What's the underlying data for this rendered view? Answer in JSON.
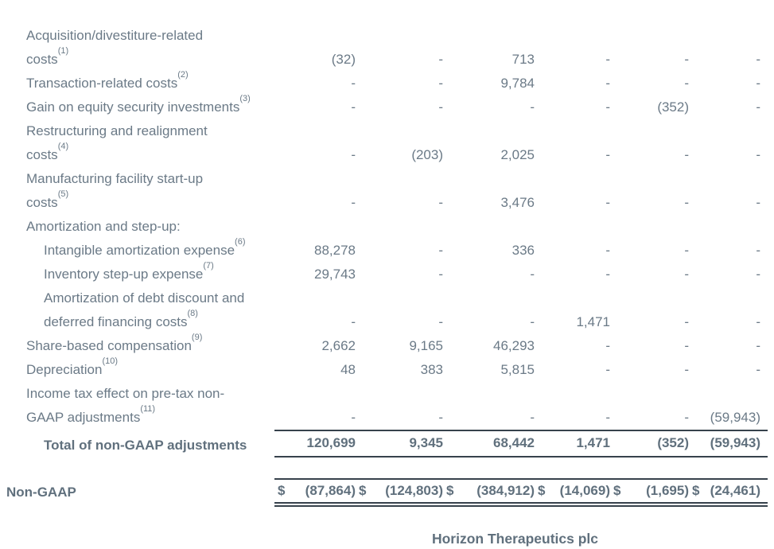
{
  "colors": {
    "text": "#6b7a87",
    "bold_text": "#60707d",
    "rule": "#37424c",
    "background": "#ffffff"
  },
  "table": {
    "rows": [
      {
        "lines": [
          "Acquisition/divestiture-related",
          "costs"
        ],
        "sup": "(1)",
        "indent": 0,
        "bold": false,
        "total": false,
        "values": [
          "(32)",
          "-",
          "713",
          "-",
          "-",
          "-"
        ]
      },
      {
        "lines": [
          "Transaction-related costs"
        ],
        "sup": "(2)",
        "indent": 0,
        "bold": false,
        "total": false,
        "values": [
          "-",
          "-",
          "9,784",
          "-",
          "-",
          "-"
        ]
      },
      {
        "lines": [
          "Gain on equity security investments"
        ],
        "sup": "(3)",
        "indent": 0,
        "bold": false,
        "total": false,
        "values": [
          "-",
          "-",
          "-",
          "-",
          "(352)",
          "-"
        ]
      },
      {
        "lines": [
          "Restructuring and realignment",
          "costs"
        ],
        "sup": "(4)",
        "indent": 0,
        "bold": false,
        "total": false,
        "values": [
          "-",
          "(203)",
          "2,025",
          "-",
          "-",
          "-"
        ]
      },
      {
        "lines": [
          "Manufacturing facility start-up",
          "costs"
        ],
        "sup": "(5)",
        "indent": 0,
        "bold": false,
        "total": false,
        "values": [
          "-",
          "-",
          "3,476",
          "-",
          "-",
          "-"
        ]
      },
      {
        "lines": [
          "Amortization and step-up:"
        ],
        "sup": "",
        "indent": 0,
        "bold": false,
        "total": false,
        "values": [
          "",
          "",
          "",
          "",
          "",
          ""
        ]
      },
      {
        "lines": [
          "Intangible amortization expense"
        ],
        "sup": "(6)",
        "indent": 1,
        "bold": false,
        "total": false,
        "values": [
          "88,278",
          "-",
          "336",
          "-",
          "-",
          "-"
        ]
      },
      {
        "lines": [
          "Inventory step-up expense"
        ],
        "sup": "(7)",
        "indent": 1,
        "bold": false,
        "total": false,
        "values": [
          "29,743",
          "-",
          "-",
          "-",
          "-",
          "-"
        ]
      },
      {
        "lines": [
          "Amortization of debt discount and",
          "deferred financing costs"
        ],
        "sup": "(8)",
        "indent": 1,
        "bold": false,
        "total": false,
        "values": [
          "-",
          "-",
          "-",
          "1,471",
          "-",
          "-"
        ]
      },
      {
        "lines": [
          "Share-based compensation"
        ],
        "sup": "(9)",
        "indent": 0,
        "bold": false,
        "total": false,
        "values": [
          "2,662",
          "9,165",
          "46,293",
          "-",
          "-",
          "-"
        ]
      },
      {
        "lines": [
          "Depreciation"
        ],
        "sup": "(10)",
        "indent": 0,
        "bold": false,
        "total": false,
        "values": [
          "48",
          "383",
          "5,815",
          "-",
          "-",
          "-"
        ]
      },
      {
        "lines": [
          "Income tax effect on pre-tax non-",
          "GAAP adjustments"
        ],
        "sup": "(11)",
        "indent": 0,
        "bold": false,
        "total": false,
        "values": [
          "-",
          "-",
          "-",
          "-",
          "-",
          "(59,943)"
        ]
      },
      {
        "lines": [
          "Total of non-GAAP adjustments"
        ],
        "sup": "",
        "indent": 1,
        "bold": true,
        "total": true,
        "values": [
          "120,699",
          "9,345",
          "68,442",
          "1,471",
          "(352)",
          "(59,943)"
        ]
      }
    ],
    "nongaap": {
      "label": "Non-GAAP",
      "currency": "$",
      "values": [
        "(87,864)",
        "(124,803)",
        "(384,912)",
        "(14,069)",
        "(1,695)",
        "(24,461)"
      ]
    }
  },
  "footer": {
    "company": "Horizon Therapeutics plc"
  }
}
